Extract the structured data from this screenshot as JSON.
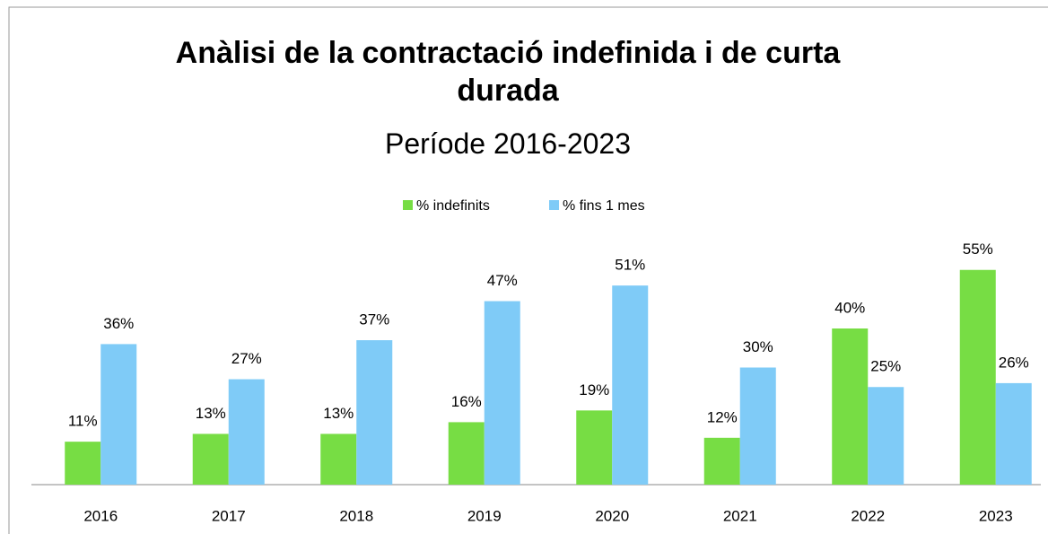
{
  "chart_data": {
    "type": "bar",
    "title": "Anàlisi de la contractació indefinida i de curta durada",
    "subtitle": "Període 2016-2023",
    "categories": [
      "2016",
      "2017",
      "2018",
      "2019",
      "2020",
      "2021",
      "2022",
      "2023"
    ],
    "series": [
      {
        "name": "% indefinits",
        "color": "#77dd44",
        "values": [
          11,
          13,
          13,
          16,
          19,
          12,
          40,
          55
        ],
        "value_labels": [
          "11%",
          "13%",
          "13%",
          "16%",
          "19%",
          "12%",
          "40%",
          "55%"
        ]
      },
      {
        "name": "% fins 1 mes",
        "color": "#7fcbf7",
        "values": [
          36,
          27,
          37,
          47,
          51,
          30,
          25,
          26
        ],
        "value_labels": [
          "36%",
          "27%",
          "37%",
          "47%",
          "51%",
          "30%",
          "25%",
          "26%"
        ]
      }
    ],
    "ylim": [
      0,
      60
    ],
    "legend": "top"
  }
}
